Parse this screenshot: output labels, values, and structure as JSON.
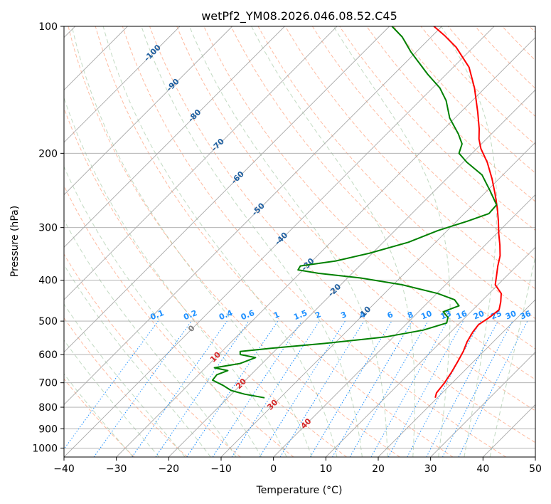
{
  "chart_data": {
    "type": "line",
    "title": "wetPf2_YM08.2026.046.08.52.C45",
    "xlabel": "Temperature (°C)",
    "ylabel": "Pressure (hPa)",
    "xlim": [
      -40,
      50
    ],
    "ylim": [
      1050,
      100
    ],
    "y_scale": "log",
    "skew": true,
    "xticks": [
      -40,
      -30,
      -20,
      -10,
      0,
      10,
      20,
      30,
      40,
      50
    ],
    "xtick_labels": [
      "−40",
      "−30",
      "−20",
      "−10",
      "0",
      "10",
      "20",
      "30",
      "40",
      "50"
    ],
    "yticks": [
      1000,
      900,
      800,
      700,
      600,
      500,
      400,
      300,
      200,
      100
    ],
    "ytick_labels": [
      "1000",
      "900",
      "800",
      "700",
      "600",
      "500",
      "400",
      "300",
      "200",
      "100"
    ],
    "grid": true,
    "series": [
      {
        "color": "#ff0000",
        "points": [
          [
            760,
            19.6
          ],
          [
            740,
            18.9
          ],
          [
            700,
            18.5
          ],
          [
            660,
            17.8
          ],
          [
            620,
            16.9
          ],
          [
            590,
            16.1
          ],
          [
            560,
            15.0
          ],
          [
            530,
            14.2
          ],
          [
            510,
            13.9
          ],
          [
            490,
            14.6
          ],
          [
            470,
            15.0
          ],
          [
            450,
            13.8
          ],
          [
            430,
            12.3
          ],
          [
            410,
            9.5
          ],
          [
            390,
            8.0
          ],
          [
            370,
            6.4
          ],
          [
            350,
            4.9
          ],
          [
            330,
            2.8
          ],
          [
            310,
            0.4
          ],
          [
            290,
            -2.0
          ],
          [
            270,
            -4.7
          ],
          [
            250,
            -7.8
          ],
          [
            230,
            -11.3
          ],
          [
            210,
            -15.4
          ],
          [
            195,
            -19.2
          ],
          [
            185,
            -21.4
          ],
          [
            175,
            -23.3
          ],
          [
            160,
            -26.7
          ],
          [
            140,
            -32.0
          ],
          [
            125,
            -37.0
          ],
          [
            112,
            -43.3
          ],
          [
            105,
            -47.8
          ],
          [
            100,
            -51.5
          ]
        ]
      },
      {
        "color": "#008000",
        "points": [
          [
            760,
            -13.0
          ],
          [
            745,
            -17.5
          ],
          [
            730,
            -20.8
          ],
          [
            710,
            -23.3
          ],
          [
            690,
            -26.3
          ],
          [
            670,
            -26.5
          ],
          [
            655,
            -25.2
          ],
          [
            645,
            -28.3
          ],
          [
            630,
            -24.2
          ],
          [
            610,
            -22.4
          ],
          [
            600,
            -25.9
          ],
          [
            590,
            -26.5
          ],
          [
            580,
            -21.2
          ],
          [
            565,
            -12.0
          ],
          [
            545,
            -1.5
          ],
          [
            525,
            4.4
          ],
          [
            505,
            7.5
          ],
          [
            490,
            6.7
          ],
          [
            475,
            4.7
          ],
          [
            460,
            6.6
          ],
          [
            445,
            4.6
          ],
          [
            430,
            0.2
          ],
          [
            410,
            -8.3
          ],
          [
            395,
            -17.5
          ],
          [
            385,
            -26.5
          ],
          [
            378,
            -31.0
          ],
          [
            370,
            -31.3
          ],
          [
            360,
            -25.5
          ],
          [
            345,
            -20.5
          ],
          [
            325,
            -15.2
          ],
          [
            305,
            -11.8
          ],
          [
            290,
            -8.0
          ],
          [
            278,
            -5.3
          ],
          [
            265,
            -5.5
          ],
          [
            245,
            -9.5
          ],
          [
            225,
            -14.0
          ],
          [
            210,
            -19.3
          ],
          [
            200,
            -22.5
          ],
          [
            190,
            -23.7
          ],
          [
            180,
            -26.3
          ],
          [
            165,
            -31.0
          ],
          [
            150,
            -35.0
          ],
          [
            140,
            -38.6
          ],
          [
            130,
            -43.5
          ],
          [
            115,
            -51.0
          ],
          [
            106,
            -55.5
          ],
          [
            100,
            -59.5
          ]
        ]
      }
    ],
    "isotherm_labels": [
      "-100",
      "-90",
      "-80",
      "-70",
      "-60",
      "-50",
      "-40",
      "-30",
      "-20",
      "-10"
    ],
    "isotherm_label_temps": [
      -100,
      -90,
      -80,
      -70,
      -60,
      -50,
      -40,
      -30,
      -20,
      -10
    ],
    "isotherm_label_pressures": [
      115,
      137,
      162,
      190,
      227,
      270,
      317,
      365,
      420,
      475
    ],
    "mixing_ratio_labels": [
      "0.1",
      "0.2",
      "0.4",
      "0.6",
      "1",
      "1.5",
      "2",
      "3",
      "4",
      "6",
      "8",
      "10",
      "13",
      "16",
      "20",
      "25",
      "30",
      "36"
    ],
    "mixing_ratio_values": [
      0.1,
      0.2,
      0.4,
      0.6,
      1,
      1.5,
      2,
      3,
      4,
      6,
      8,
      10,
      13,
      16,
      20,
      25,
      30,
      36
    ],
    "moist_labels": [
      "0",
      "10",
      "20",
      "30",
      "40"
    ],
    "moist_label_temps": [
      0,
      10,
      20,
      30,
      40
    ],
    "moist_label_pressures": [
      518,
      605,
      700,
      785,
      870
    ],
    "colors": {
      "temperature": "#ff0000",
      "dewpoint": "#008000",
      "isotherm_label": "#1f5fa0",
      "mixing_ratio": "#1e90ff",
      "moist_label": "#d62728",
      "dry_adiabat": "#ffa07a",
      "moist_adiabat": "#8fbc8f",
      "grid": "#a8a8a8"
    }
  }
}
